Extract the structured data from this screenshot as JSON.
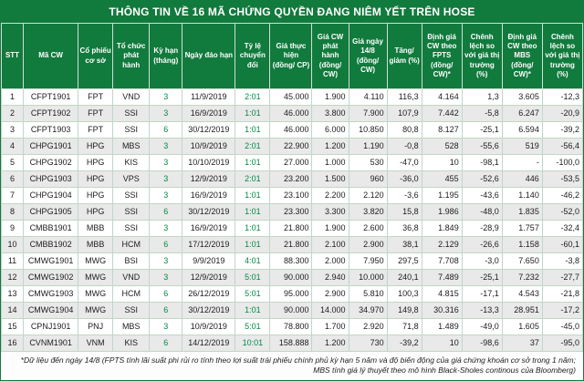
{
  "colors": {
    "header_green": "#117a3d",
    "accent_green": "#008a45",
    "alt_row": "#e9e9e9"
  },
  "chart_data": {
    "type": "table",
    "title": "THÔNG TIN VỀ 16 MÃ CHỨNG QUYỀN ĐANG NIÊM YẾT TRÊN HOSE",
    "columns": [
      "STT",
      "Mã CW",
      "Cổ phiếu cơ sở",
      "Tổ chức phát hành",
      "Kỳ hạn (tháng)",
      "Ngày đáo hạn",
      "Tỷ lệ chuyển đổi",
      "Giá thực hiện (đồng/ CP)",
      "Giá CW phát hành (đồng/ CW)",
      "Giá ngày 14/8 (đồng/ CW)",
      "Tăng/ giảm (%)",
      "Định giá CW theo FPTS (đồng/ CW)*",
      "Chênh lệch so với giá thị trường (%)",
      "Định giá CW theo MBS (đồng/ CW)*",
      "Chênh lệch so với giá thị trường (%)"
    ],
    "rows": [
      [
        "1",
        "CFPT1901",
        "FPT",
        "VND",
        "3",
        "11/9/2019",
        "2:01",
        "45.000",
        "1.900",
        "4.110",
        "116,3",
        "4.164",
        "1,3",
        "3.605",
        "-12,3"
      ],
      [
        "2",
        "CFPT1902",
        "FPT",
        "SSI",
        "3",
        "16/9/2019",
        "1:01",
        "46.000",
        "3.800",
        "7.900",
        "107,9",
        "7.442",
        "-5,8",
        "6.247",
        "-20,9"
      ],
      [
        "3",
        "CFPT1903",
        "FPT",
        "SSI",
        "6",
        "30/12/2019",
        "1:01",
        "46.000",
        "6.000",
        "10.850",
        "80,8",
        "8.127",
        "-25,1",
        "6.594",
        "-39,2"
      ],
      [
        "4",
        "CHPG1901",
        "HPG",
        "MBS",
        "3",
        "10/9/2019",
        "2:01",
        "22.900",
        "1.200",
        "1.190",
        "-0,8",
        "528",
        "-55,6",
        "519",
        "-56,4"
      ],
      [
        "5",
        "CHPG1902",
        "HPG",
        "KIS",
        "3",
        "10/10/2019",
        "1:01",
        "27.000",
        "1.000",
        "530",
        "-47,0",
        "10",
        "-98,1",
        "-",
        "-100,0"
      ],
      [
        "6",
        "CHPG1903",
        "HPG",
        "VPS",
        "3",
        "12/9/2019",
        "2:01",
        "23.200",
        "1.500",
        "960",
        "-36,0",
        "455",
        "-52,6",
        "446",
        "-53,5"
      ],
      [
        "7",
        "CHPG1904",
        "HPG",
        "SSI",
        "3",
        "16/9/2019",
        "1:01",
        "23.100",
        "2.200",
        "2.120",
        "-3,6",
        "1.195",
        "-43,6",
        "1.140",
        "-46,2"
      ],
      [
        "8",
        "CHPG1905",
        "HPG",
        "SSI",
        "6",
        "30/12/2019",
        "1:01",
        "23.300",
        "3.300",
        "3.820",
        "15,8",
        "1.986",
        "-48,0",
        "1.835",
        "-52,0"
      ],
      [
        "9",
        "CMBB1901",
        "MBB",
        "SSI",
        "3",
        "16/9/2019",
        "1:01",
        "21.800",
        "1.900",
        "2.600",
        "36,8",
        "1.849",
        "-28,9",
        "1.757",
        "-32,4"
      ],
      [
        "10",
        "CMBB1902",
        "MBB",
        "HCM",
        "6",
        "17/12/2019",
        "1:01",
        "21.800",
        "2.100",
        "2.900",
        "38,1",
        "2.129",
        "-26,6",
        "1.158",
        "-60,1"
      ],
      [
        "11",
        "CMWG1901",
        "MWG",
        "BSI",
        "3",
        "9/9/2019",
        "4:01",
        "88.300",
        "2.000",
        "7.950",
        "297,5",
        "7.708",
        "-3,0",
        "7.650",
        "-3,8"
      ],
      [
        "12",
        "CMWG1902",
        "MWG",
        "VND",
        "3",
        "12/9/2019",
        "5:01",
        "90.000",
        "2.940",
        "10.000",
        "240,1",
        "7.489",
        "-25,1",
        "7.232",
        "-27,7"
      ],
      [
        "13",
        "CMWG1903",
        "MWG",
        "HCM",
        "6",
        "26/12/2019",
        "5:01",
        "95.000",
        "2.900",
        "5.810",
        "100,3",
        "4.815",
        "-17,1",
        "4.543",
        "-21,8"
      ],
      [
        "14",
        "CMWG1904",
        "MWG",
        "SSI",
        "6",
        "30/12/2019",
        "1:01",
        "90.000",
        "14.000",
        "34.970",
        "149,8",
        "30.316",
        "-13,3",
        "28.951",
        "-17,2"
      ],
      [
        "15",
        "CPNJ1901",
        "PNJ",
        "MBS",
        "3",
        "10/9/2019",
        "5:01",
        "78.800",
        "1.700",
        "2.920",
        "71,8",
        "1.489",
        "-49,0",
        "1.605",
        "-45,0"
      ],
      [
        "16",
        "CVNM1901",
        "VNM",
        "KIS",
        "6",
        "14/12/2019",
        "10:01",
        "158.888",
        "1.200",
        "730",
        "-39,2",
        "10",
        "-98,6",
        "37",
        "-95,0"
      ]
    ],
    "footnote_line1": "*Dữ liệu đến ngày 14/8 (FPTS tính lãi suất phi rủi ro tính theo lợi suất trái phiếu chính phủ kỳ hạn 5 năm và độ biến động của giá chứng khoán cơ sở trong 1 năm;",
    "footnote_line2": "MBS tính giá lý thuyết theo mô hình Black-Sholes continous của Bloomberg)"
  }
}
